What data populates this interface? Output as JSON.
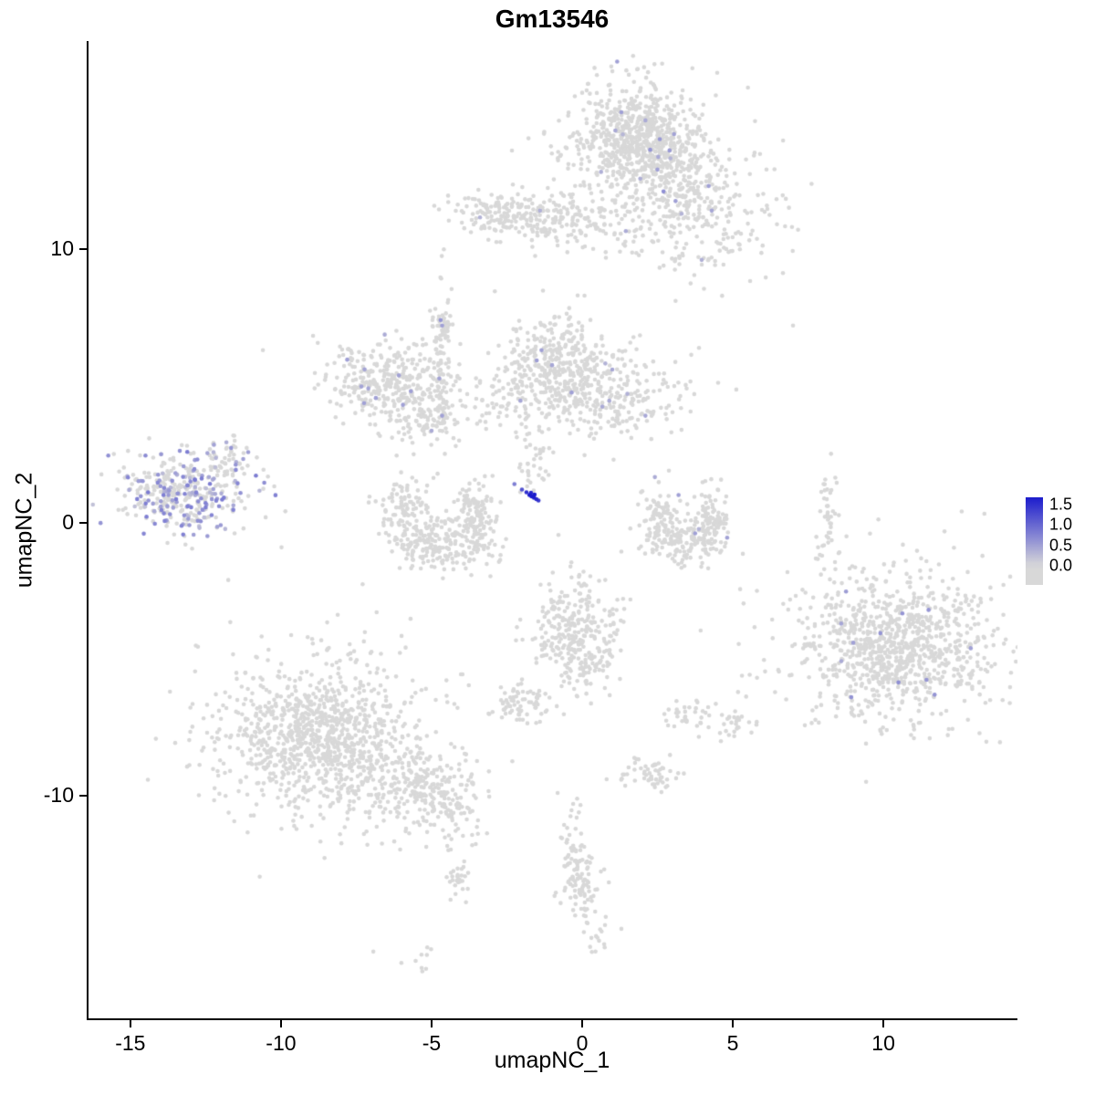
{
  "chart_data": {
    "type": "scatter",
    "title": "Gm13546",
    "xlabel": "umapNC_1",
    "ylabel": "umapNC_2",
    "xlim": [
      -16.45,
      14.45
    ],
    "ylim": [
      -18.2,
      17.6
    ],
    "x_ticks": [
      {
        "v": -15,
        "label": "-15"
      },
      {
        "v": -10,
        "label": "-10"
      },
      {
        "v": -5,
        "label": "-5"
      },
      {
        "v": 0,
        "label": "0"
      },
      {
        "v": 5,
        "label": "5"
      },
      {
        "v": 10,
        "label": "10"
      }
    ],
    "y_ticks": [
      {
        "v": 10,
        "label": "10"
      },
      {
        "v": 0,
        "label": "0"
      },
      {
        "v": -10,
        "label": "-10"
      }
    ],
    "seed": 42,
    "point_radius": 2.3,
    "color_low": "#D8D8D8",
    "color_high": "#1414CC",
    "color_max_value": 1.75,
    "legend": {
      "ticks": [
        "1.5",
        "1.0",
        "0.5",
        "0.0"
      ],
      "tick_values": [
        1.5,
        1.0,
        0.5,
        0.0
      ],
      "zero_frac": 0.22,
      "bar_max_value": 1.68
    },
    "clusters": [
      {
        "name": "top-core",
        "x": 1.9,
        "y": 13.9,
        "sx": 1.0,
        "sy": 0.9,
        "n": 600,
        "f": 0.012,
        "vmin": 0.3,
        "vmax": 0.6
      },
      {
        "name": "top-fringe",
        "x": 1.9,
        "y": 13.8,
        "sx": 1.6,
        "sy": 1.3,
        "n": 220,
        "f": 0.005,
        "vmin": 0.3,
        "vmax": 0.5
      },
      {
        "name": "top-arm",
        "x": 3.5,
        "y": 12.3,
        "sx": 0.7,
        "sy": 0.8,
        "n": 150,
        "f": 0.01,
        "vmin": 0.3,
        "vmax": 0.6
      },
      {
        "name": "top-right-scatter",
        "x": 4.8,
        "y": 10.8,
        "sx": 1.0,
        "sy": 1.1,
        "n": 110,
        "f": 0.005,
        "vmin": 0.3,
        "vmax": 0.5
      },
      {
        "name": "band-left",
        "x": -2.4,
        "y": 11.25,
        "sx": 1.0,
        "sy": 0.42,
        "n": 170,
        "f": 0.004,
        "vmin": 0.3,
        "vmax": 0.5
      },
      {
        "name": "band-right",
        "x": -0.1,
        "y": 11.05,
        "sx": 1.2,
        "sy": 0.45,
        "n": 130,
        "f": 0,
        "vmin": 0,
        "vmax": 0
      },
      {
        "name": "band-bridge",
        "x": 1.8,
        "y": 10.7,
        "sx": 1.0,
        "sy": 0.8,
        "n": 60,
        "f": 0,
        "vmin": 0,
        "vmax": 0
      },
      {
        "name": "midleft-core",
        "x": -6.5,
        "y": 5.2,
        "sx": 1.1,
        "sy": 0.75,
        "n": 320,
        "f": 0.012,
        "vmin": 0.3,
        "vmax": 0.55
      },
      {
        "name": "midleft-arm",
        "x": -5.4,
        "y": 3.9,
        "sx": 0.7,
        "sy": 0.5,
        "n": 90,
        "f": 0.012,
        "vmin": 0.3,
        "vmax": 0.5
      },
      {
        "name": "midleft-strand",
        "x": -4.62,
        "y": 5.3,
        "sx": 0.22,
        "sy": 1.6,
        "n": 90,
        "f": 0.01,
        "vmin": 0.3,
        "vmax": 0.5
      },
      {
        "name": "strand-top",
        "x": -4.68,
        "y": 7.25,
        "sx": 0.18,
        "sy": 0.3,
        "n": 25,
        "f": 0.05,
        "vmin": 0.4,
        "vmax": 0.6
      },
      {
        "name": "center-core",
        "x": -0.9,
        "y": 5.5,
        "sx": 1.1,
        "sy": 0.8,
        "n": 320,
        "f": 0.01,
        "vmin": 0.3,
        "vmax": 0.55
      },
      {
        "name": "center-right",
        "x": 0.9,
        "y": 4.6,
        "sx": 1.3,
        "sy": 0.75,
        "n": 260,
        "f": 0.008,
        "vmin": 0.3,
        "vmax": 0.5
      },
      {
        "name": "center-top-wisp",
        "x": -0.6,
        "y": 6.9,
        "sx": 0.5,
        "sy": 0.5,
        "n": 40,
        "f": 0,
        "vmin": 0,
        "vmax": 0
      },
      {
        "name": "bridge-left",
        "x": -3.2,
        "y": 4.5,
        "sx": 0.7,
        "sy": 0.7,
        "n": 45,
        "f": 0,
        "vmin": 0,
        "vmax": 0
      },
      {
        "name": "left-expressing",
        "x": -13.2,
        "y": 1.1,
        "sx": 1.05,
        "sy": 0.75,
        "n": 380,
        "f": 0.32,
        "vmin": 0.2,
        "vmax": 0.85
      },
      {
        "name": "left-arm",
        "x": -11.7,
        "y": 2.3,
        "sx": 0.35,
        "sy": 0.4,
        "n": 45,
        "f": 0.15,
        "vmin": 0.2,
        "vmax": 0.6
      },
      {
        "name": "crescent-left-a",
        "x": -5.9,
        "y": 0.3,
        "sx": 0.4,
        "sy": 0.6,
        "n": 110,
        "f": 0,
        "vmin": 0,
        "vmax": 0
      },
      {
        "name": "crescent-left-b",
        "x": -4.7,
        "y": -0.75,
        "sx": 0.8,
        "sy": 0.45,
        "n": 220,
        "f": 0,
        "vmin": 0,
        "vmax": 0
      },
      {
        "name": "crescent-left-c",
        "x": -3.5,
        "y": 0.2,
        "sx": 0.35,
        "sy": 0.6,
        "n": 110,
        "f": 0,
        "vmin": 0,
        "vmax": 0
      },
      {
        "name": "streak-stem",
        "x": -1.6,
        "y": 2.6,
        "sx": 0.3,
        "sy": 0.8,
        "n": 45,
        "f": 0,
        "vmin": 0,
        "vmax": 0
      },
      {
        "name": "crescent-right-a",
        "x": 2.6,
        "y": 0.3,
        "sx": 0.35,
        "sy": 0.55,
        "n": 80,
        "f": 0.006,
        "vmin": 0.3,
        "vmax": 0.5
      },
      {
        "name": "crescent-right-b",
        "x": 3.4,
        "y": -0.7,
        "sx": 0.7,
        "sy": 0.4,
        "n": 160,
        "f": 0.006,
        "vmin": 0.3,
        "vmax": 0.5
      },
      {
        "name": "crescent-right-c",
        "x": 4.3,
        "y": 0.2,
        "sx": 0.3,
        "sy": 0.55,
        "n": 80,
        "f": 0,
        "vmin": 0,
        "vmax": 0
      },
      {
        "name": "right-strand",
        "x": 8.15,
        "y": 0.5,
        "sx": 0.13,
        "sy": 0.8,
        "n": 40,
        "f": 0,
        "vmin": 0,
        "vmax": 0
      },
      {
        "name": "bottomright-core",
        "x": 10.4,
        "y": -4.6,
        "sx": 1.5,
        "sy": 1.2,
        "n": 750,
        "f": 0.008,
        "vmin": 0.3,
        "vmax": 0.65
      },
      {
        "name": "bottomright-fringe",
        "x": 10.6,
        "y": -4.2,
        "sx": 2.1,
        "sy": 1.7,
        "n": 260,
        "f": 0.004,
        "vmin": 0.3,
        "vmax": 0.5
      },
      {
        "name": "center-column",
        "x": -0.3,
        "y": -3.9,
        "sx": 0.75,
        "sy": 1.0,
        "n": 260,
        "f": 0,
        "vmin": 0,
        "vmax": 0
      },
      {
        "name": "center-column-tail",
        "x": 0.2,
        "y": -5.3,
        "sx": 0.5,
        "sy": 0.5,
        "n": 60,
        "f": 0,
        "vmin": 0,
        "vmax": 0
      },
      {
        "name": "small-left-blob",
        "x": -2.2,
        "y": -6.6,
        "sx": 0.5,
        "sy": 0.35,
        "n": 70,
        "f": 0,
        "vmin": 0,
        "vmax": 0
      },
      {
        "name": "bottomleft-core",
        "x": -8.7,
        "y": -8.0,
        "sx": 1.5,
        "sy": 1.2,
        "n": 800,
        "f": 0,
        "vmin": 0,
        "vmax": 0
      },
      {
        "name": "bottomleft-fringe",
        "x": -8.3,
        "y": -7.6,
        "sx": 2.2,
        "sy": 1.8,
        "n": 260,
        "f": 0,
        "vmin": 0,
        "vmax": 0
      },
      {
        "name": "bottomleft-tail",
        "x": -5.6,
        "y": -9.6,
        "sx": 1.1,
        "sy": 0.7,
        "n": 220,
        "f": 0,
        "vmin": 0,
        "vmax": 0
      },
      {
        "name": "bottomleft-tail2",
        "x": -4.3,
        "y": -10.7,
        "sx": 0.5,
        "sy": 0.45,
        "n": 60,
        "f": 0,
        "vmin": 0,
        "vmax": 0
      },
      {
        "name": "small-blob-a",
        "x": 2.3,
        "y": -9.2,
        "sx": 0.45,
        "sy": 0.3,
        "n": 55,
        "f": 0,
        "vmin": 0,
        "vmax": 0
      },
      {
        "name": "small-blob-b",
        "x": 3.6,
        "y": -7.1,
        "sx": 0.4,
        "sy": 0.3,
        "n": 35,
        "f": 0,
        "vmin": 0,
        "vmax": 0
      },
      {
        "name": "small-blob-c",
        "x": 5.0,
        "y": -7.4,
        "sx": 0.35,
        "sy": 0.3,
        "n": 30,
        "f": 0,
        "vmin": 0,
        "vmax": 0
      },
      {
        "name": "bottom-strand",
        "x": -0.35,
        "y": -11.6,
        "sx": 0.22,
        "sy": 0.9,
        "n": 45,
        "f": 0,
        "vmin": 0,
        "vmax": 0
      },
      {
        "name": "bottom-blob",
        "x": 0.0,
        "y": -13.3,
        "sx": 0.35,
        "sy": 0.6,
        "n": 70,
        "f": 0,
        "vmin": 0,
        "vmax": 0
      },
      {
        "name": "bottom-tail",
        "x": 0.5,
        "y": -14.9,
        "sx": 0.3,
        "sy": 0.5,
        "n": 20,
        "f": 0,
        "vmin": 0,
        "vmax": 0
      },
      {
        "name": "bottomleft-strand",
        "x": -4.1,
        "y": -13.1,
        "sx": 0.25,
        "sy": 0.6,
        "n": 28,
        "f": 0,
        "vmin": 0,
        "vmax": 0
      },
      {
        "name": "bottomleft-dots",
        "x": -5.4,
        "y": -15.9,
        "sx": 0.7,
        "sy": 0.35,
        "n": 10,
        "f": 0,
        "vmin": 0,
        "vmax": 0
      }
    ],
    "singles": [
      [
        -10.6,
        6.3
      ],
      [
        7.0,
        7.2
      ],
      [
        -2.9,
        8.45
      ],
      [
        3.1,
        8.1
      ],
      [
        -0.15,
        8.3
      ],
      [
        12.6,
        0.4
      ]
    ],
    "highlight_points": [
      [
        1.3,
        15.0,
        0.5
      ],
      [
        2.1,
        14.7,
        0.4
      ],
      [
        2.9,
        13.6,
        0.55
      ],
      [
        2.5,
        12.9,
        0.5
      ],
      [
        2.7,
        12.1,
        0.65
      ],
      [
        3.1,
        11.75,
        0.5
      ],
      [
        4.2,
        12.3,
        0.5
      ],
      [
        4.3,
        11.4,
        0.45
      ],
      [
        1.45,
        10.65,
        0.4
      ],
      [
        -1.4,
        11.4,
        0.35
      ],
      [
        -4.7,
        7.4,
        0.6
      ],
      [
        -4.65,
        7.2,
        0.5
      ],
      [
        -7.8,
        5.95,
        0.5
      ],
      [
        -7.1,
        4.9,
        0.45
      ],
      [
        -6.85,
        4.55,
        0.5
      ],
      [
        -5.95,
        4.3,
        0.5
      ],
      [
        -4.65,
        3.9,
        0.5
      ],
      [
        -5.0,
        3.35,
        0.4
      ],
      [
        -1.35,
        6.3,
        0.5
      ],
      [
        -1.0,
        5.75,
        0.45
      ],
      [
        -0.35,
        4.75,
        0.5
      ],
      [
        0.9,
        4.45,
        0.4
      ],
      [
        -2.05,
        4.45,
        0.45
      ],
      [
        1.5,
        4.7,
        0.35
      ],
      [
        2.1,
        3.9,
        0.45
      ],
      [
        -13.9,
        1.0,
        0.8
      ],
      [
        -13.1,
        1.35,
        0.7
      ],
      [
        -12.5,
        0.55,
        0.8
      ],
      [
        -14.4,
        0.8,
        0.6
      ],
      [
        -12.0,
        -0.1,
        0.55
      ],
      [
        -12.9,
        -0.45,
        0.5
      ],
      [
        -2.25,
        1.4,
        0.8
      ],
      [
        -2.0,
        1.2,
        1.2
      ],
      [
        -1.85,
        1.1,
        1.5
      ],
      [
        -1.75,
        1.0,
        1.7
      ],
      [
        -1.68,
        0.95,
        1.7
      ],
      [
        -1.6,
        0.9,
        1.65
      ],
      [
        -1.52,
        0.85,
        1.55
      ],
      [
        -1.45,
        0.8,
        1.4
      ],
      [
        -1.58,
        1.02,
        1.7
      ],
      [
        -1.7,
        1.08,
        1.6
      ],
      [
        3.2,
        1.0,
        0.5
      ],
      [
        3.75,
        -0.4,
        0.5
      ],
      [
        9.0,
        -4.4,
        0.5
      ],
      [
        9.9,
        -4.05,
        0.6
      ],
      [
        11.5,
        -3.2,
        0.6
      ],
      [
        10.5,
        -5.85,
        0.65
      ],
      [
        11.7,
        -6.3,
        0.6
      ],
      [
        12.9,
        -4.6,
        0.5
      ],
      [
        8.6,
        -3.7,
        0.45
      ]
    ]
  }
}
